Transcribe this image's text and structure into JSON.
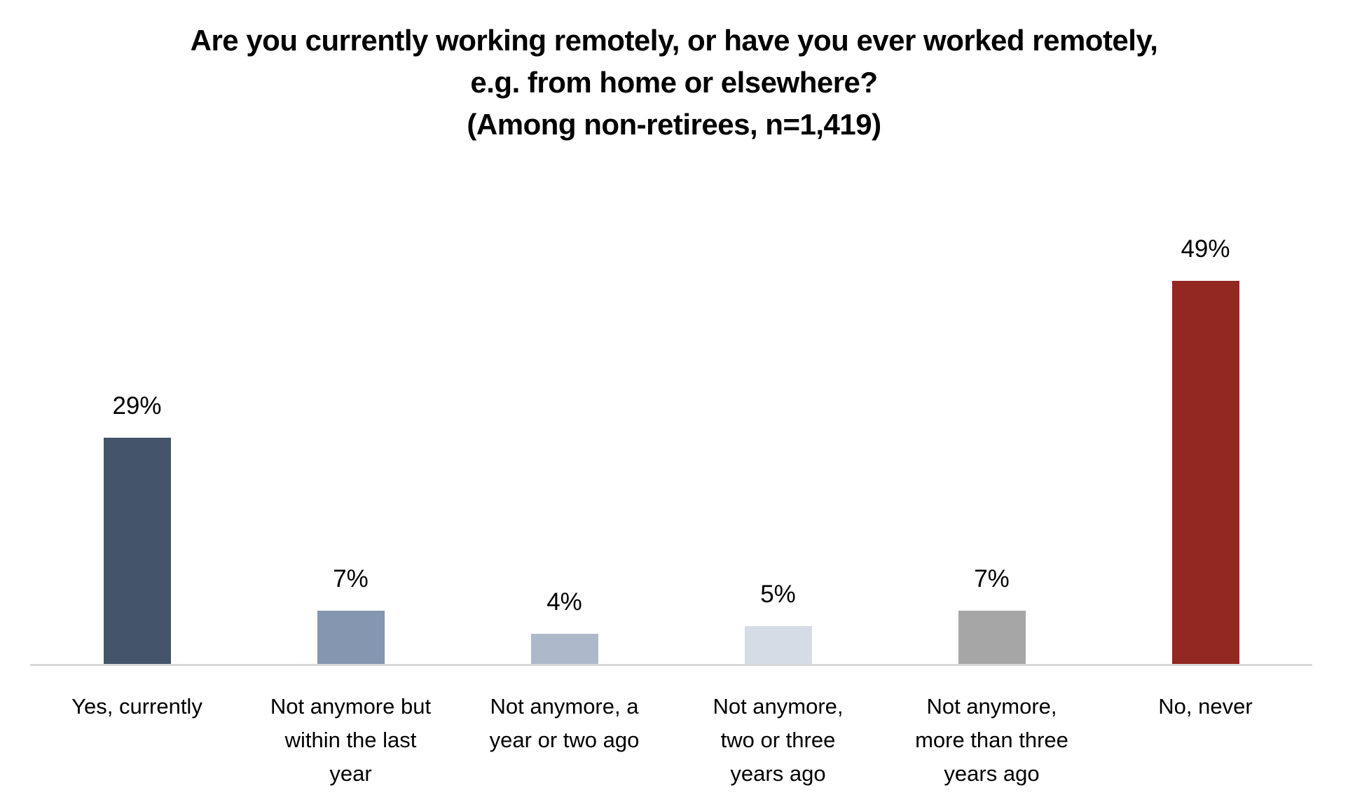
{
  "chart_data": {
    "type": "bar",
    "title": "Are you currently working remotely, or have you ever worked remotely, e.g. from home or elsewhere? (Among non-retirees, n=1,419)",
    "title_lines": [
      "Are you currently working remotely, or have you ever worked remotely,",
      "e.g. from home or elsewhere?",
      "(Among non-retirees, n=1,419)"
    ],
    "categories": [
      "Yes, currently",
      "Not anymore but within the last year",
      "Not anymore, a year or two ago",
      "Not anymore, two or three years ago",
      "Not anymore, more than three years ago",
      "No, never"
    ],
    "category_lines": [
      "Yes, currently",
      "Not anymore but\nwithin the last\nyear",
      "Not anymore, a\nyear or two ago",
      "Not anymore,\ntwo or three\nyears ago",
      "Not anymore,\nmore than three\nyears ago",
      "No, never"
    ],
    "values": [
      29,
      7,
      4,
      5,
      7,
      49
    ],
    "value_labels": [
      "29%",
      "7%",
      "4%",
      "5%",
      "7%",
      "49%"
    ],
    "bar_colors": [
      "#44546A",
      "#8496B0",
      "#ADB9CA",
      "#D6DCE5",
      "#A6A6A6",
      "#932722"
    ],
    "axis_line_color": "#D9D9D9",
    "xlabel": "",
    "ylabel": "",
    "ylim": [
      0,
      62
    ],
    "grid": false,
    "legend": false,
    "data_label_position": "above-bar"
  }
}
